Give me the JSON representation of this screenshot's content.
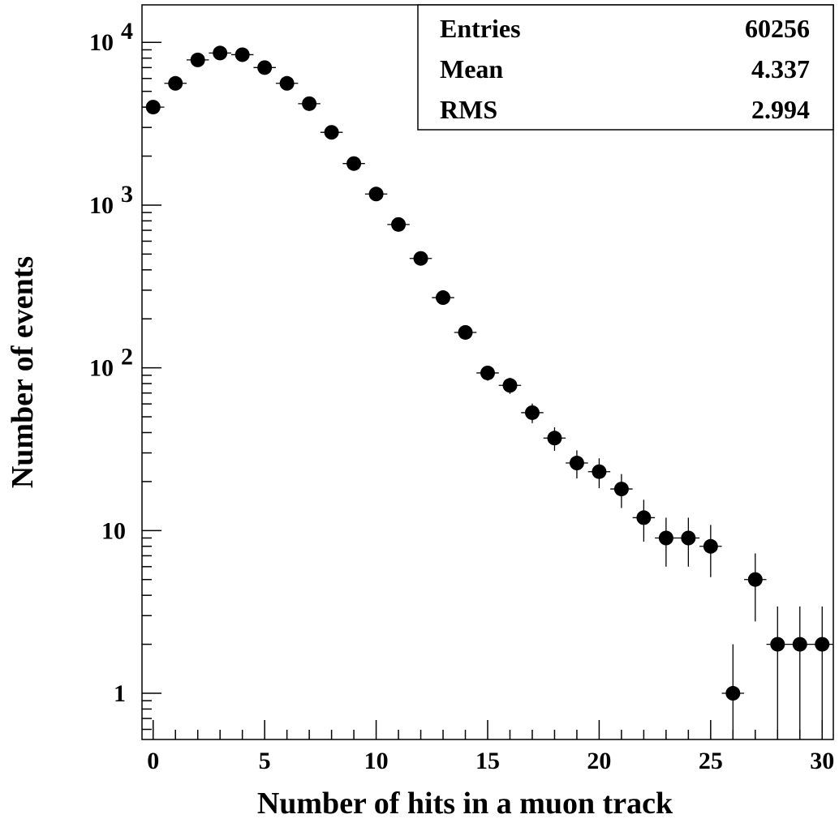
{
  "chart_data": {
    "type": "scatter",
    "title": "",
    "xlabel": "Number of hits in a muon track",
    "ylabel": "Number of events",
    "xlim": [
      -0.5,
      30.5
    ],
    "ylim": [
      0.52,
      17000
    ],
    "yscale": "log",
    "grid": false,
    "x_tick_labels": [
      "0",
      "5",
      "10",
      "15",
      "20",
      "25",
      "30"
    ],
    "y_tick_labels": [
      {
        "value": 1,
        "base": "1",
        "exp": ""
      },
      {
        "value": 10,
        "base": "10",
        "exp": ""
      },
      {
        "value": 100,
        "base": "10",
        "exp": "2"
      },
      {
        "value": 1000,
        "base": "10",
        "exp": "3"
      },
      {
        "value": 10000,
        "base": "10",
        "exp": "4"
      }
    ],
    "points": [
      {
        "x": 0,
        "y": 4000
      },
      {
        "x": 1,
        "y": 5600
      },
      {
        "x": 2,
        "y": 7800
      },
      {
        "x": 3,
        "y": 8600
      },
      {
        "x": 4,
        "y": 8400
      },
      {
        "x": 5,
        "y": 7000
      },
      {
        "x": 6,
        "y": 5600
      },
      {
        "x": 7,
        "y": 4200
      },
      {
        "x": 8,
        "y": 2800
      },
      {
        "x": 9,
        "y": 1800
      },
      {
        "x": 10,
        "y": 1170
      },
      {
        "x": 11,
        "y": 760
      },
      {
        "x": 12,
        "y": 470
      },
      {
        "x": 13,
        "y": 270
      },
      {
        "x": 14,
        "y": 165
      },
      {
        "x": 15,
        "y": 93
      },
      {
        "x": 16,
        "y": 78
      },
      {
        "x": 17,
        "y": 53
      },
      {
        "x": 18,
        "y": 37
      },
      {
        "x": 19,
        "y": 26
      },
      {
        "x": 20,
        "y": 23
      },
      {
        "x": 21,
        "y": 18
      },
      {
        "x": 22,
        "y": 12
      },
      {
        "x": 23,
        "y": 9
      },
      {
        "x": 24,
        "y": 9
      },
      {
        "x": 25,
        "y": 8
      },
      {
        "x": 26,
        "y": 1
      },
      {
        "x": 27,
        "y": 5
      },
      {
        "x": 28,
        "y": 2
      },
      {
        "x": 29,
        "y": 2
      },
      {
        "x": 30,
        "y": 2
      }
    ],
    "error_bars": "sqrt(N)",
    "stats_box": {
      "placement": "top-right",
      "rows": [
        {
          "label": "Entries",
          "value": "60256"
        },
        {
          "label": "Mean",
          "value": "4.337"
        },
        {
          "label": "RMS",
          "value": "2.994"
        }
      ]
    }
  }
}
